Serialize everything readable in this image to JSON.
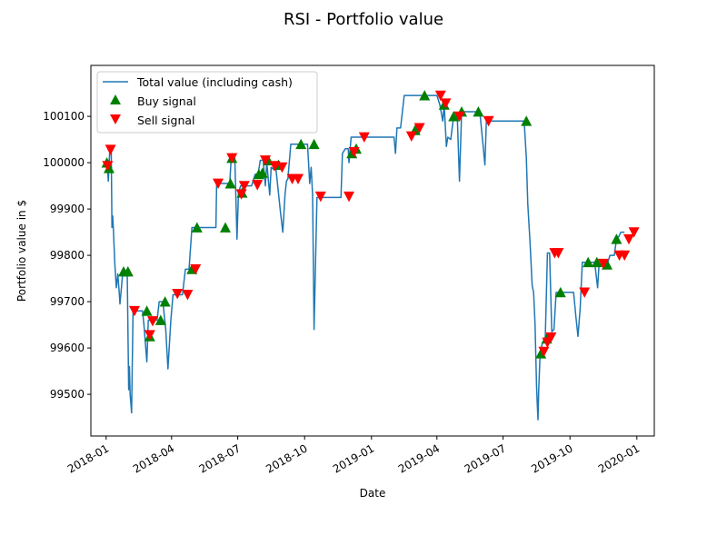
{
  "chart_data": {
    "type": "line",
    "title": "RSI - Portfolio value",
    "xlabel": "Date",
    "ylabel": "Portfolio value in $",
    "xlim": [
      "2017-12-11",
      "2020-01-25"
    ],
    "ylim": [
      99410,
      100210
    ],
    "grid": false,
    "legend_position": "top-left",
    "x_ticks": [
      "2018-01-01",
      "2018-04-01",
      "2018-07-01",
      "2018-10-01",
      "2019-01-01",
      "2019-04-01",
      "2019-07-01",
      "2019-10-01",
      "2020-01-01"
    ],
    "x_tick_labels": [
      "2018-01",
      "2018-04",
      "2018-07",
      "2018-10",
      "2019-01",
      "2019-04",
      "2019-07",
      "2019-10",
      "2020-01"
    ],
    "y_ticks": [
      99500,
      99600,
      99700,
      99800,
      99900,
      100000,
      100100
    ],
    "y_tick_labels": [
      "99500",
      "99600",
      "99700",
      "99800",
      "99900",
      "100000",
      "100100"
    ],
    "colors": {
      "line": "#1f77b4",
      "buy": "#008000",
      "sell": "#ff0000"
    },
    "series": [
      {
        "name": "Total value (including cash)",
        "kind": "line",
        "points": [
          [
            "2018-01-02",
            100000
          ],
          [
            "2018-01-03",
            99985
          ],
          [
            "2018-01-04",
            99960
          ],
          [
            "2018-01-05",
            99995
          ],
          [
            "2018-01-06",
            100028
          ],
          [
            "2018-01-08",
            100028
          ],
          [
            "2018-01-09",
            99860
          ],
          [
            "2018-01-10",
            99885
          ],
          [
            "2018-01-11",
            99855
          ],
          [
            "2018-01-13",
            99780
          ],
          [
            "2018-01-15",
            99730
          ],
          [
            "2018-01-17",
            99760
          ],
          [
            "2018-01-19",
            99720
          ],
          [
            "2018-01-20",
            99695
          ],
          [
            "2018-01-22",
            99730
          ],
          [
            "2018-01-24",
            99765
          ],
          [
            "2018-01-27",
            99765
          ],
          [
            "2018-01-30",
            99765
          ],
          [
            "2018-02-01",
            99510
          ],
          [
            "2018-02-02",
            99560
          ],
          [
            "2018-02-03",
            99500
          ],
          [
            "2018-02-05",
            99460
          ],
          [
            "2018-02-07",
            99680
          ],
          [
            "2018-02-12",
            99680
          ],
          [
            "2018-02-20",
            99680
          ],
          [
            "2018-02-22",
            99650
          ],
          [
            "2018-02-24",
            99610
          ],
          [
            "2018-02-26",
            99570
          ],
          [
            "2018-02-28",
            99660
          ],
          [
            "2018-03-05",
            99660
          ],
          [
            "2018-03-12",
            99660
          ],
          [
            "2018-03-15",
            99700
          ],
          [
            "2018-03-20",
            99700
          ],
          [
            "2018-03-24",
            99640
          ],
          [
            "2018-03-27",
            99555
          ],
          [
            "2018-03-31",
            99660
          ],
          [
            "2018-04-03",
            99715
          ],
          [
            "2018-04-10",
            99715
          ],
          [
            "2018-04-16",
            99715
          ],
          [
            "2018-04-20",
            99770
          ],
          [
            "2018-04-25",
            99770
          ],
          [
            "2018-04-29",
            99860
          ],
          [
            "2018-05-15",
            99860
          ],
          [
            "2018-06-01",
            99860
          ],
          [
            "2018-06-02",
            99955
          ],
          [
            "2018-06-12",
            99955
          ],
          [
            "2018-06-20",
            99955
          ],
          [
            "2018-06-22",
            100010
          ],
          [
            "2018-06-27",
            100010
          ],
          [
            "2018-06-30",
            99835
          ],
          [
            "2018-07-02",
            99935
          ],
          [
            "2018-07-05",
            99950
          ],
          [
            "2018-07-20",
            99950
          ],
          [
            "2018-07-25",
            99975
          ],
          [
            "2018-07-29",
            99975
          ],
          [
            "2018-08-01",
            100005
          ],
          [
            "2018-08-05",
            100005
          ],
          [
            "2018-08-08",
            99950
          ],
          [
            "2018-08-10",
            100000
          ],
          [
            "2018-08-14",
            99930
          ],
          [
            "2018-08-16",
            99990
          ],
          [
            "2018-08-20",
            99985
          ],
          [
            "2018-08-22",
            99995
          ],
          [
            "2018-08-26",
            99935
          ],
          [
            "2018-08-29",
            99890
          ],
          [
            "2018-09-01",
            99850
          ],
          [
            "2018-09-04",
            99930
          ],
          [
            "2018-09-06",
            99960
          ],
          [
            "2018-09-08",
            99965
          ],
          [
            "2018-09-12",
            100040
          ],
          [
            "2018-09-20",
            100040
          ],
          [
            "2018-10-01",
            100040
          ],
          [
            "2018-10-05",
            100040
          ],
          [
            "2018-10-08",
            99955
          ],
          [
            "2018-10-10",
            99990
          ],
          [
            "2018-10-12",
            99930
          ],
          [
            "2018-10-14",
            99640
          ],
          [
            "2018-10-18",
            99925
          ],
          [
            "2018-10-22",
            99925
          ],
          [
            "2018-11-10",
            99925
          ],
          [
            "2018-11-20",
            99925
          ],
          [
            "2018-11-22",
            100020
          ],
          [
            "2018-11-26",
            100030
          ],
          [
            "2018-11-30",
            100030
          ],
          [
            "2018-12-01",
            100000
          ],
          [
            "2018-12-04",
            100055
          ],
          [
            "2018-12-15",
            100055
          ],
          [
            "2019-01-20",
            100055
          ],
          [
            "2019-02-01",
            100055
          ],
          [
            "2019-02-03",
            100020
          ],
          [
            "2019-02-05",
            100075
          ],
          [
            "2019-02-10",
            100075
          ],
          [
            "2019-02-15",
            100145
          ],
          [
            "2019-03-20",
            100145
          ],
          [
            "2019-04-01",
            100145
          ],
          [
            "2019-04-05",
            100125
          ],
          [
            "2019-04-09",
            100090
          ],
          [
            "2019-04-11",
            100125
          ],
          [
            "2019-04-14",
            100035
          ],
          [
            "2019-04-16",
            100055
          ],
          [
            "2019-04-20",
            100050
          ],
          [
            "2019-04-24",
            100100
          ],
          [
            "2019-04-29",
            100100
          ],
          [
            "2019-05-02",
            99960
          ],
          [
            "2019-05-05",
            100110
          ],
          [
            "2019-05-10",
            100110
          ],
          [
            "2019-05-20",
            100110
          ],
          [
            "2019-05-30",
            100110
          ],
          [
            "2019-06-03",
            100045
          ],
          [
            "2019-06-06",
            99995
          ],
          [
            "2019-06-08",
            100090
          ],
          [
            "2019-06-20",
            100090
          ],
          [
            "2019-07-10",
            100090
          ],
          [
            "2019-07-30",
            100090
          ],
          [
            "2019-08-02",
            100010
          ],
          [
            "2019-08-04",
            99910
          ],
          [
            "2019-08-07",
            99830
          ],
          [
            "2019-08-10",
            99735
          ],
          [
            "2019-08-12",
            99720
          ],
          [
            "2019-08-14",
            99650
          ],
          [
            "2019-08-16",
            99520
          ],
          [
            "2019-08-17",
            99480
          ],
          [
            "2019-08-18",
            99445
          ],
          [
            "2019-08-19",
            99510
          ],
          [
            "2019-08-21",
            99590
          ],
          [
            "2019-08-24",
            99610
          ],
          [
            "2019-08-28",
            99620
          ],
          [
            "2019-08-31",
            99805
          ],
          [
            "2019-09-03",
            99805
          ],
          [
            "2019-09-06",
            99635
          ],
          [
            "2019-09-09",
            99640
          ],
          [
            "2019-09-12",
            99720
          ],
          [
            "2019-09-30",
            99720
          ],
          [
            "2019-10-06",
            99720
          ],
          [
            "2019-10-09",
            99670
          ],
          [
            "2019-10-12",
            99625
          ],
          [
            "2019-10-15",
            99685
          ],
          [
            "2019-10-18",
            99785
          ],
          [
            "2019-10-30",
            99785
          ],
          [
            "2019-11-04",
            99785
          ],
          [
            "2019-11-08",
            99730
          ],
          [
            "2019-11-10",
            99780
          ],
          [
            "2019-11-18",
            99780
          ],
          [
            "2019-11-21",
            99780
          ],
          [
            "2019-11-25",
            99800
          ],
          [
            "2019-12-01",
            99800
          ],
          [
            "2019-12-04",
            99835
          ],
          [
            "2019-12-07",
            99840
          ],
          [
            "2019-12-10",
            99850
          ],
          [
            "2019-12-15",
            99850
          ]
        ]
      },
      {
        "name": "Buy signal",
        "kind": "marker-up",
        "points": [
          [
            "2018-01-02",
            100000
          ],
          [
            "2018-01-05",
            99988
          ],
          [
            "2018-01-25",
            99765
          ],
          [
            "2018-01-31",
            99765
          ],
          [
            "2018-02-26",
            99680
          ],
          [
            "2018-03-02",
            99625
          ],
          [
            "2018-03-17",
            99660
          ],
          [
            "2018-03-23",
            99700
          ],
          [
            "2018-04-29",
            99770
          ],
          [
            "2018-05-06",
            99860
          ],
          [
            "2018-06-14",
            99860
          ],
          [
            "2018-06-21",
            99955
          ],
          [
            "2018-06-23",
            100010
          ],
          [
            "2018-07-07",
            99935
          ],
          [
            "2018-07-30",
            99975
          ],
          [
            "2018-08-04",
            99978
          ],
          [
            "2018-08-12",
            100005
          ],
          [
            "2018-08-26",
            99995
          ],
          [
            "2018-09-26",
            100040
          ],
          [
            "2018-10-14",
            100040
          ],
          [
            "2018-12-05",
            100020
          ],
          [
            "2018-12-11",
            100030
          ],
          [
            "2019-03-02",
            100070
          ],
          [
            "2019-03-15",
            100145
          ],
          [
            "2019-04-11",
            100125
          ],
          [
            "2019-04-24",
            100100
          ],
          [
            "2019-05-05",
            100110
          ],
          [
            "2019-05-28",
            100110
          ],
          [
            "2019-08-02",
            100090
          ],
          [
            "2019-08-22",
            99588
          ],
          [
            "2019-08-30",
            99620
          ],
          [
            "2019-09-18",
            99720
          ],
          [
            "2019-10-26",
            99785
          ],
          [
            "2019-11-07",
            99785
          ],
          [
            "2019-11-21",
            99780
          ],
          [
            "2019-12-04",
            99835
          ]
        ]
      },
      {
        "name": "Sell signal",
        "kind": "marker-down",
        "points": [
          [
            "2018-01-03",
            99993
          ],
          [
            "2018-01-07",
            100028
          ],
          [
            "2018-02-09",
            99680
          ],
          [
            "2018-03-02",
            99628
          ],
          [
            "2018-03-06",
            99658
          ],
          [
            "2018-04-09",
            99717
          ],
          [
            "2018-04-23",
            99715
          ],
          [
            "2018-05-04",
            99770
          ],
          [
            "2018-06-04",
            99955
          ],
          [
            "2018-06-23",
            100010
          ],
          [
            "2018-07-06",
            99932
          ],
          [
            "2018-07-10",
            99950
          ],
          [
            "2018-07-28",
            99952
          ],
          [
            "2018-08-08",
            100005
          ],
          [
            "2018-08-21",
            99993
          ],
          [
            "2018-08-31",
            99990
          ],
          [
            "2018-09-14",
            99965
          ],
          [
            "2018-09-22",
            99965
          ],
          [
            "2018-10-23",
            99927
          ],
          [
            "2018-12-01",
            99927
          ],
          [
            "2018-12-08",
            100023
          ],
          [
            "2018-12-22",
            100055
          ],
          [
            "2019-02-25",
            100057
          ],
          [
            "2019-03-08",
            100075
          ],
          [
            "2019-04-06",
            100145
          ],
          [
            "2019-04-13",
            100128
          ],
          [
            "2019-05-02",
            100100
          ],
          [
            "2019-06-11",
            100090
          ],
          [
            "2019-08-26",
            99592
          ],
          [
            "2019-08-31",
            99612
          ],
          [
            "2019-09-05",
            99623
          ],
          [
            "2019-09-10",
            99805
          ],
          [
            "2019-09-15",
            99805
          ],
          [
            "2019-10-21",
            99720
          ],
          [
            "2019-11-16",
            99782
          ],
          [
            "2019-12-08",
            99800
          ],
          [
            "2019-12-15",
            99800
          ],
          [
            "2019-12-21",
            99835
          ],
          [
            "2019-12-28",
            99850
          ]
        ]
      }
    ]
  }
}
